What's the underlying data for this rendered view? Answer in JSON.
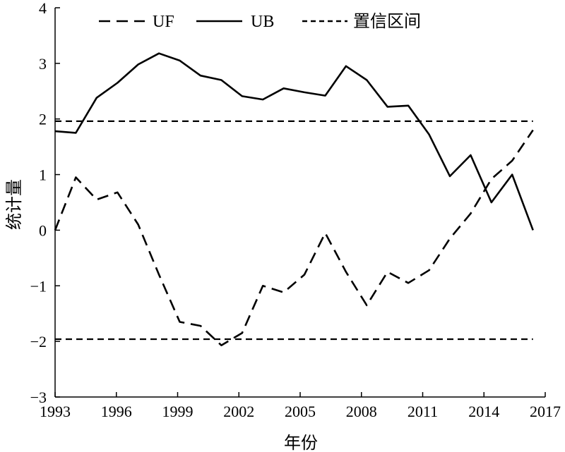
{
  "chart_data": {
    "type": "line",
    "xlabel": "年份",
    "ylabel": "统计量",
    "xlim": [
      1993,
      2017
    ],
    "ylim": [
      -3,
      4
    ],
    "xticks": [
      1993,
      1996,
      1999,
      2002,
      2005,
      2008,
      2011,
      2014,
      2017
    ],
    "yticks": [
      4,
      3,
      2,
      1,
      0,
      -1,
      -2,
      -3
    ],
    "ytick_labels": [
      "4",
      "3",
      "2",
      "1",
      "0",
      "−1",
      "−2",
      "−3"
    ],
    "grid": false,
    "legend_position": "top",
    "x": [
      1993,
      1994,
      1995,
      1996,
      1997,
      1998,
      1999,
      2000,
      2001,
      2002,
      2003,
      2004,
      2005,
      2006,
      2007,
      2008,
      2009,
      2010,
      2011,
      2012,
      2013,
      2014,
      2015,
      2016,
      2017
    ],
    "series": [
      {
        "name": "UF",
        "style": "dashed",
        "values": [
          0.0,
          0.95,
          0.55,
          0.68,
          0.1,
          -0.8,
          -1.65,
          -1.72,
          -2.07,
          -1.85,
          -1.0,
          -1.12,
          -0.8,
          -0.05,
          -0.75,
          -1.35,
          -0.75,
          -0.95,
          -0.72,
          -0.15,
          0.3,
          0.92,
          1.25,
          1.8,
          null
        ]
      },
      {
        "name": "UB",
        "style": "solid",
        "values": [
          1.78,
          1.75,
          2.38,
          2.65,
          2.98,
          3.18,
          3.05,
          2.78,
          2.7,
          2.41,
          2.35,
          2.55,
          2.48,
          2.42,
          2.95,
          2.7,
          2.22,
          2.24,
          1.72,
          0.97,
          1.35,
          0.5,
          1.0,
          0.0,
          null
        ]
      }
    ],
    "reference_lines": {
      "name": "置信区间",
      "style": "dashed",
      "values": [
        1.96,
        -1.96
      ]
    },
    "colors": {
      "line": "#000000",
      "background": "#ffffff"
    }
  }
}
